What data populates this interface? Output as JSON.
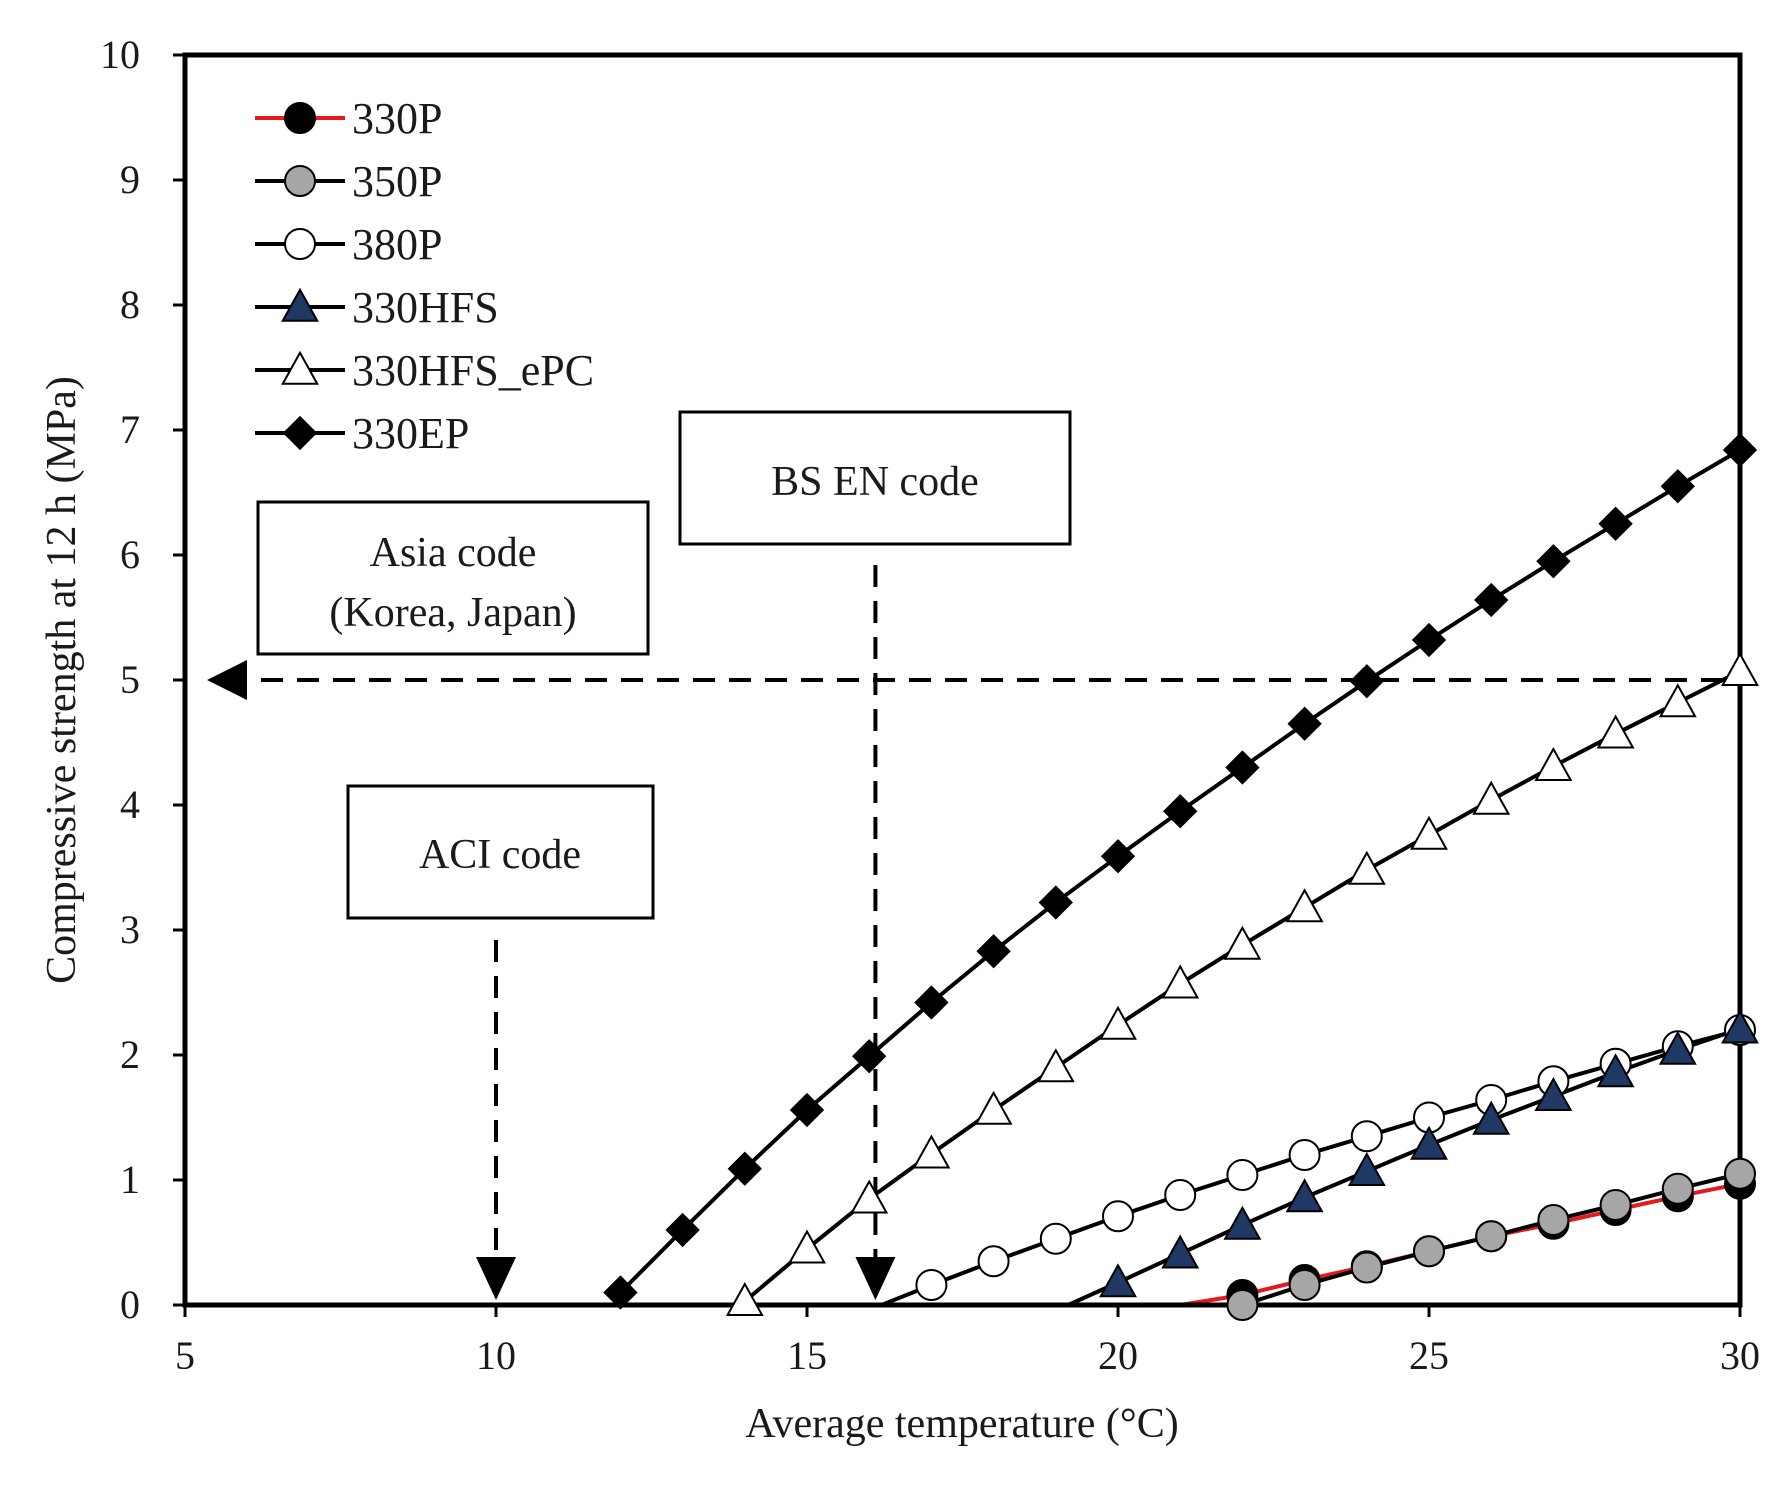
{
  "chart_data": {
    "type": "line",
    "title": "",
    "xlabel": "Average temperature (°C)",
    "ylabel": "Compressive strength at 12 h (MPa)",
    "xlim": [
      5,
      30
    ],
    "ylim": [
      0,
      10
    ],
    "xticks": [
      5,
      10,
      15,
      20,
      25,
      30
    ],
    "yticks": [
      0,
      1,
      2,
      3,
      4,
      5,
      6,
      7,
      8,
      9,
      10
    ],
    "legend_position": "top-left",
    "series": [
      {
        "name": "330P",
        "line_color": "#e41a1c",
        "marker": "circle",
        "marker_fill": "#000000",
        "zero_from": 21.0,
        "x": [
          22,
          23,
          24,
          25,
          26,
          27,
          28,
          29,
          30
        ],
        "y": [
          0.08,
          0.2,
          0.31,
          0.43,
          0.55,
          0.65,
          0.76,
          0.87,
          0.97
        ]
      },
      {
        "name": "350P",
        "line_color": "#000000",
        "marker": "circle",
        "marker_fill": "#a6a6a6",
        "x": [
          22,
          23,
          24,
          25,
          26,
          27,
          28,
          29,
          30
        ],
        "y": [
          0.0,
          0.16,
          0.3,
          0.43,
          0.55,
          0.68,
          0.8,
          0.93,
          1.05
        ]
      },
      {
        "name": "380P",
        "line_color": "#000000",
        "marker": "circle",
        "marker_fill": "#ffffff",
        "zero_from": 16.2,
        "x": [
          17,
          18,
          19,
          20,
          21,
          22,
          23,
          24,
          25,
          26,
          27,
          28,
          29,
          30
        ],
        "y": [
          0.16,
          0.35,
          0.53,
          0.71,
          0.88,
          1.04,
          1.2,
          1.35,
          1.5,
          1.64,
          1.79,
          1.93,
          2.07,
          2.2
        ]
      },
      {
        "name": "330HFS",
        "line_color": "#000000",
        "marker": "triangle",
        "marker_fill": "#1f3864",
        "zero_from": 19.2,
        "x": [
          20,
          21,
          22,
          23,
          24,
          25,
          26,
          27,
          28,
          29,
          30
        ],
        "y": [
          0.18,
          0.41,
          0.64,
          0.86,
          1.07,
          1.28,
          1.48,
          1.67,
          1.86,
          2.04,
          2.21
        ]
      },
      {
        "name": "330HFS_ePC",
        "line_color": "#000000",
        "marker": "triangle",
        "marker_fill": "#ffffff",
        "zero_from": 14.0,
        "x": [
          14,
          15,
          16,
          17,
          18,
          19,
          20,
          21,
          22,
          23,
          24,
          25,
          26,
          27,
          28,
          29,
          30
        ],
        "y": [
          0.03,
          0.45,
          0.85,
          1.21,
          1.56,
          1.9,
          2.24,
          2.57,
          2.88,
          3.18,
          3.48,
          3.76,
          4.04,
          4.31,
          4.57,
          4.82,
          5.07
        ]
      },
      {
        "name": "330EP",
        "line_color": "#000000",
        "marker": "diamond",
        "marker_fill": "#000000",
        "x": [
          12,
          13,
          14,
          15,
          16,
          17,
          18,
          19,
          20,
          21,
          22,
          23,
          24,
          25,
          26,
          27,
          28,
          29,
          30
        ],
        "y": [
          0.1,
          0.6,
          1.09,
          1.56,
          1.99,
          2.42,
          2.83,
          3.22,
          3.59,
          3.95,
          4.3,
          4.65,
          4.99,
          5.32,
          5.64,
          5.95,
          6.25,
          6.55,
          6.84
        ]
      }
    ],
    "reference_lines": {
      "horizontal_y": 5,
      "arrow_bs_en_x": 16.1,
      "arrow_aci_x": 10.0
    },
    "annotations": [
      {
        "id": "asia",
        "lines": [
          "Asia code",
          "(Korea, Japan)"
        ]
      },
      {
        "id": "bs_en",
        "lines": [
          "BS EN code"
        ]
      },
      {
        "id": "aci",
        "lines": [
          "ACI code"
        ]
      }
    ]
  }
}
